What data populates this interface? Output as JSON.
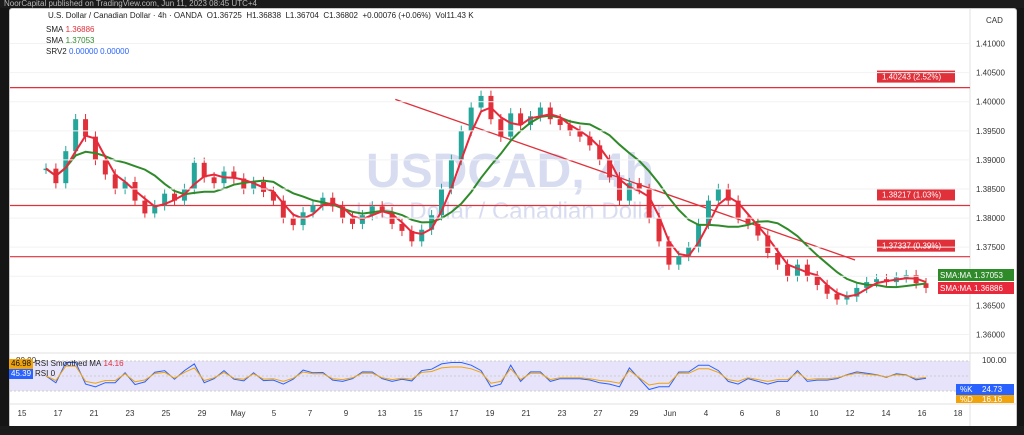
{
  "header": {
    "publisher": "NoorCapital published on TradingView.com, Jun 11, 2023 08:45 UTC+4",
    "symbol_line": "U.S. Dollar / Canadian Dollar · 4h · OANDA",
    "open": "O1.36725",
    "high": "H1.36838",
    "low": "L1.36704",
    "close": "C1.36802",
    "change": "+0.00076 (+0.06%)",
    "volume": "Vol11.43 K",
    "currency": "CAD"
  },
  "legend": {
    "sma1_label": "SMA",
    "sma1_value": "1.36886",
    "sma2_label": "SMA",
    "sma2_value": "1.37053",
    "srv2_label": "SRV2",
    "srv2_v1": "0.00000",
    "srv2_v2": "0.00000"
  },
  "watermark": {
    "symbol": "USDCAD, 4h",
    "name": "U.S. Dollar / Canadian Dollar"
  },
  "colors": {
    "price_up": "#26a69a",
    "price_down": "#e0303a",
    "sma_fast": "#e8293b",
    "sma_slow": "#2f8a2a",
    "level_line": "#e0303a",
    "trend_line": "#e0303a",
    "rsi": "#2962ff",
    "rsi_ma": "#f0a30a",
    "rsi_band": "#e6e3fa"
  },
  "rsi_panel": {
    "label1": "46.98",
    "label1_name": "RSI",
    "label1_text": "Smoothed MA",
    "label1_value": "14.16",
    "label2": "45.39",
    "label2_name": "RSI",
    "value_0": "0",
    "k_label": "%K",
    "k_value": "24.73",
    "d_label": "%D",
    "d_value": "16.16",
    "axis_top": "80.00",
    "axis_100": "100.00"
  },
  "badges": {
    "sma_ma1_label": "SMA:MA",
    "sma_ma1_value": "1.37053",
    "sma_ma2_label": "SMA:MA",
    "sma_ma2_value": "1.36886"
  },
  "chart_data": {
    "type": "candlestick",
    "title": "USDCAD, 4h",
    "y_axis": {
      "ticks": [
        1.41,
        1.405,
        1.4,
        1.395,
        1.39,
        1.385,
        1.38,
        1.375,
        1.37,
        1.365,
        1.36
      ],
      "tick_labels": [
        "1.41000",
        "1.40500",
        "1.40000",
        "1.39500",
        "1.39000",
        "1.38500",
        "1.38000",
        "1.37500",
        "1.37000",
        "1.36500",
        "1.36000"
      ],
      "range": [
        1.3575,
        1.4125
      ]
    },
    "x_axis": {
      "tick_labels": [
        "15",
        "17",
        "21",
        "23",
        "25",
        "29",
        "May",
        "5",
        "7",
        "9",
        "13",
        "15",
        "17",
        "19",
        "21",
        "23",
        "27",
        "29",
        "Jun",
        "4",
        "6",
        "8",
        "10",
        "12",
        "14",
        "16",
        "18"
      ]
    },
    "levels": [
      {
        "price": 1.40243,
        "label": "1.40243 (2.52%)"
      },
      {
        "price": 1.38217,
        "label": "1.38217 (1.03%)"
      },
      {
        "price": 1.37337,
        "label": "1.37337 (0.39%)"
      }
    ],
    "trend_line": {
      "start": [
        0.383,
        1.4004
      ],
      "end": [
        0.84,
        1.3728
      ]
    },
    "price_path": [
      1.3885,
      1.386,
      1.3915,
      1.397,
      1.394,
      1.39,
      1.3875,
      1.385,
      1.3862,
      1.383,
      1.3808,
      1.3822,
      1.3842,
      1.383,
      1.385,
      1.3895,
      1.387,
      1.386,
      1.388,
      1.3868,
      1.385,
      1.3862,
      1.3845,
      1.383,
      1.38,
      1.3788,
      1.381,
      1.3822,
      1.3835,
      1.382,
      1.38,
      1.379,
      1.3805,
      1.382,
      1.381,
      1.379,
      1.3778,
      1.376,
      1.378,
      1.3805,
      1.385,
      1.39,
      1.395,
      1.399,
      1.401,
      1.397,
      1.394,
      1.398,
      1.396,
      1.3975,
      1.399,
      1.397,
      1.396,
      1.395,
      1.394,
      1.3925,
      1.39,
      1.387,
      1.383,
      1.386,
      1.385,
      1.38,
      1.376,
      1.372,
      1.3735,
      1.375,
      1.379,
      1.383,
      1.385,
      1.383,
      1.38,
      1.379,
      1.377,
      1.374,
      1.372,
      1.37,
      1.372,
      1.37,
      1.3685,
      1.367,
      1.366,
      1.3665,
      1.368,
      1.369,
      1.3695,
      1.369,
      1.3698,
      1.3702,
      1.3688,
      1.368
    ],
    "sma_fast_label": "SMA 1.36886",
    "sma_slow_label": "SMA 1.37053",
    "rsi_range": [
      0,
      100
    ]
  }
}
